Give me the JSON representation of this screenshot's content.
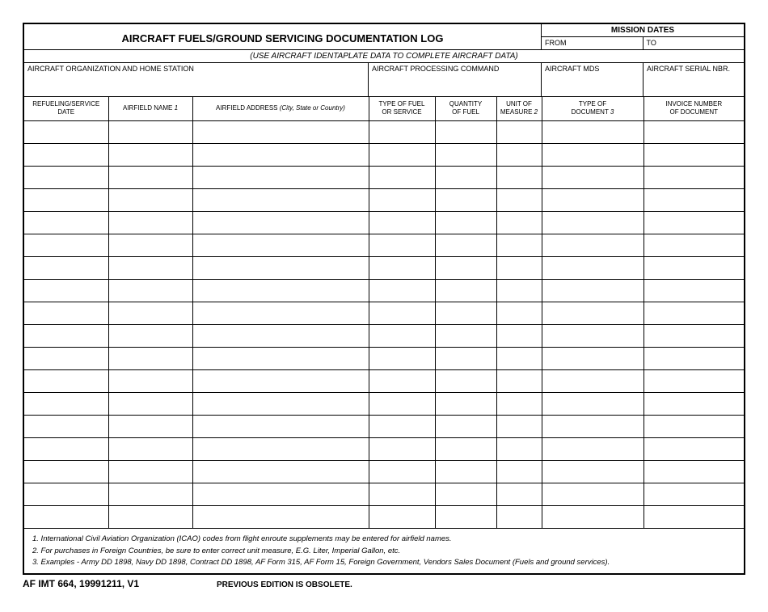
{
  "title": "AIRCRAFT FUELS/GROUND SERVICING DOCUMENTATION LOG",
  "mission": {
    "header": "MISSION DATES",
    "from_label": "FROM",
    "to_label": "TO"
  },
  "instruction": "(USE AIRCRAFT IDENTAPLATE DATA TO COMPLETE AIRCRAFT DATA)",
  "info": {
    "org_label": "AIRCRAFT ORGANIZATION AND HOME STATION",
    "proc_label": "AIRCRAFT PROCESSING COMMAND",
    "mds_label": "AIRCRAFT MDS",
    "serial_label": "AIRCRAFT SERIAL NBR."
  },
  "columns": {
    "date": "REFUELING/SERVICE\nDATE",
    "airfield_pre": "AIRFIELD NAME ",
    "airfield_note": "1",
    "address_pre": "AIRFIELD ADDRESS ",
    "address_italic": "(City, State or Country)",
    "fueltype": "TYPE OF FUEL\nOR SERVICE",
    "qty": "QUANTITY\nOF FUEL",
    "unit_pre": "UNIT OF\nMEASURE ",
    "unit_note": "2",
    "doctype_pre": "TYPE OF\nDOCUMENT ",
    "doctype_note": "3",
    "invoice": "INVOICE NUMBER\nOF DOCUMENT"
  },
  "row_count": 18,
  "footnotes": [
    "1.  International Civil Aviation Organization (ICAO) codes from flight enroute supplements may be entered for airfield names.",
    "2.  For purchases in Foreign Countries, be sure to enter correct unit measure, E.G. Liter, Imperial Gallon, etc.",
    "3.  Examples - Army DD 1898, Navy DD 1898, Contract DD 1898, AF Form 315, AF Form 15, Foreign Government, Vendors Sales Document (Fuels and ground services)."
  ],
  "form_id": "AF IMT 664, 19991211, V1",
  "obsolete": "PREVIOUS EDITION IS OBSOLETE.",
  "colors": {
    "border": "#000000",
    "background": "#ffffff",
    "text": "#000000"
  },
  "typography": {
    "title_fontsize": 13,
    "label_fontsize": 9,
    "header_fontsize": 8,
    "footnote_fontsize": 9.5
  }
}
